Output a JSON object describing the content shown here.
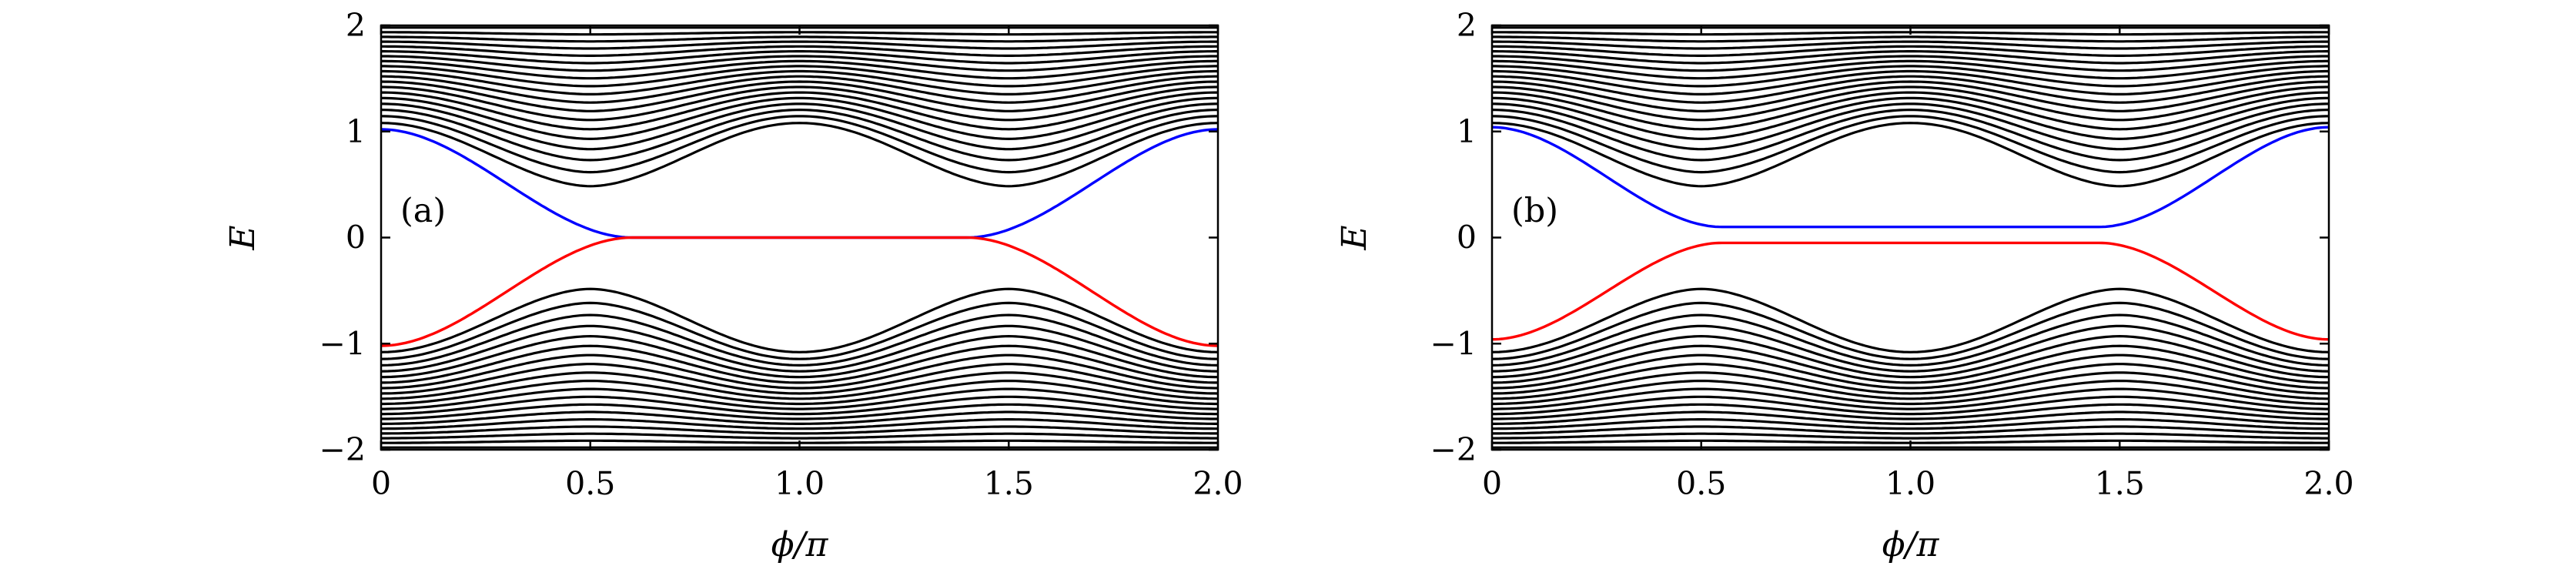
{
  "chart_data": [
    {
      "type": "line",
      "panel_label": "(a)",
      "xlabel": "ϕ/π",
      "ylabel": "E",
      "xlim": [
        0,
        2
      ],
      "ylim": [
        -2,
        2
      ],
      "xticks": [
        "0",
        "0.5",
        "1.0",
        "1.5",
        "2.0"
      ],
      "yticks": [
        "−2",
        "−1",
        "0",
        "1",
        "2"
      ],
      "grid": false,
      "bulk_band_count_per_side": 19,
      "edge_modes": [
        {
          "color": "#0000ff",
          "value_at_phi_0": 1.02,
          "flat_value": 0.0,
          "flat_range": [
            0.6,
            1.4
          ]
        },
        {
          "color": "#ff0000",
          "value_at_phi_0": -1.02,
          "flat_value": 0.0,
          "flat_range": [
            0.6,
            1.4
          ]
        }
      ],
      "bulk_color": "#000000"
    },
    {
      "type": "line",
      "panel_label": "(b)",
      "xlabel": "ϕ/π",
      "ylabel": "E",
      "xlim": [
        0,
        2
      ],
      "ylim": [
        -2,
        2
      ],
      "xticks": [
        "0",
        "0.5",
        "1.0",
        "1.5",
        "2.0"
      ],
      "yticks": [
        "−2",
        "−1",
        "0",
        "1",
        "2"
      ],
      "grid": false,
      "bulk_band_count_per_side": 19,
      "edge_modes": [
        {
          "color": "#0000ff",
          "value_at_phi_0": 1.04,
          "flat_value": 0.1,
          "flat_range": [
            0.55,
            1.45
          ]
        },
        {
          "color": "#ff0000",
          "value_at_phi_0": -0.96,
          "flat_value": -0.05,
          "flat_range": [
            0.55,
            1.45
          ]
        }
      ],
      "bulk_color": "#000000"
    }
  ]
}
